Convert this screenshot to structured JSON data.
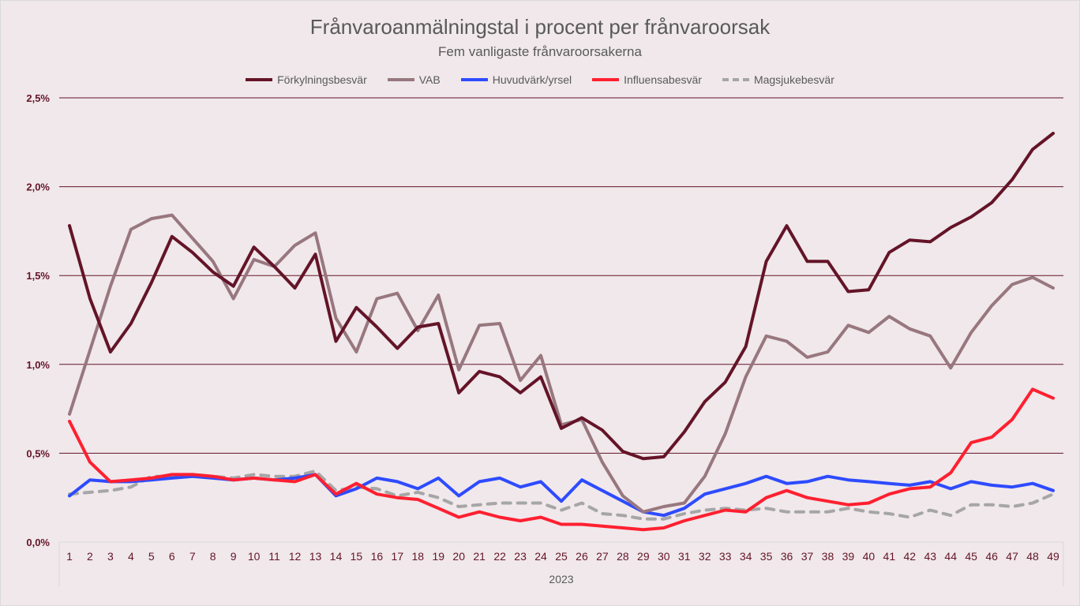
{
  "chart_data": {
    "type": "line",
    "title": "Frånvaroanmälningstal i procent per frånvaroorsak",
    "subtitle": "Fem vanligaste frånvaroorsakerna",
    "xlabel": "2023",
    "ylabel": "",
    "ylim": [
      0,
      2.5
    ],
    "yticks": [
      "0,0%",
      "0,5%",
      "1,0%",
      "1,5%",
      "2,0%",
      "2,5%"
    ],
    "grid": true,
    "legend_position": "top",
    "x": [
      1,
      2,
      3,
      4,
      5,
      6,
      7,
      8,
      9,
      10,
      11,
      12,
      13,
      14,
      15,
      16,
      17,
      18,
      19,
      20,
      21,
      22,
      23,
      24,
      25,
      26,
      27,
      28,
      29,
      30,
      31,
      32,
      33,
      34,
      35,
      36,
      37,
      38,
      39,
      40,
      41,
      42,
      43,
      44,
      45,
      46,
      47,
      48,
      49
    ],
    "series": [
      {
        "name": "Förkylningsbesvär",
        "color": "#641428",
        "dashed": false,
        "values": [
          1.78,
          1.37,
          1.07,
          1.23,
          1.46,
          1.72,
          1.63,
          1.52,
          1.44,
          1.66,
          1.55,
          1.43,
          1.62,
          1.13,
          1.32,
          1.21,
          1.09,
          1.21,
          1.23,
          0.84,
          0.96,
          0.93,
          0.84,
          0.93,
          0.64,
          0.7,
          0.63,
          0.51,
          0.47,
          0.48,
          0.62,
          0.79,
          0.9,
          1.1,
          1.58,
          1.78,
          1.58,
          1.58,
          1.41,
          1.42,
          1.63,
          1.7,
          1.69,
          1.77,
          1.83,
          1.91,
          2.04,
          2.21,
          2.3
        ]
      },
      {
        "name": "VAB",
        "color": "#98777f",
        "dashed": false,
        "values": [
          0.72,
          1.08,
          1.44,
          1.76,
          1.82,
          1.84,
          1.71,
          1.58,
          1.37,
          1.59,
          1.55,
          1.67,
          1.74,
          1.26,
          1.07,
          1.37,
          1.4,
          1.19,
          1.39,
          0.97,
          1.22,
          1.23,
          0.91,
          1.05,
          0.66,
          0.69,
          0.45,
          0.26,
          0.17,
          0.2,
          0.22,
          0.37,
          0.61,
          0.93,
          1.16,
          1.13,
          1.04,
          1.07,
          1.22,
          1.18,
          1.27,
          1.2,
          1.16,
          0.98,
          1.18,
          1.33,
          1.45,
          1.49,
          1.43
        ]
      },
      {
        "name": "Huvudvärk/yrsel",
        "color": "#2e4bff",
        "dashed": false,
        "values": [
          0.26,
          0.35,
          0.34,
          0.34,
          0.35,
          0.36,
          0.37,
          0.36,
          0.35,
          0.36,
          0.35,
          0.36,
          0.38,
          0.26,
          0.3,
          0.36,
          0.34,
          0.3,
          0.36,
          0.26,
          0.34,
          0.36,
          0.31,
          0.34,
          0.23,
          0.35,
          0.29,
          0.23,
          0.17,
          0.15,
          0.19,
          0.27,
          0.3,
          0.33,
          0.37,
          0.33,
          0.34,
          0.37,
          0.35,
          0.34,
          0.33,
          0.32,
          0.34,
          0.3,
          0.34,
          0.32,
          0.31,
          0.33,
          0.29
        ]
      },
      {
        "name": "Influensabesvär",
        "color": "#ff2030",
        "dashed": false,
        "values": [
          0.68,
          0.45,
          0.34,
          0.35,
          0.36,
          0.38,
          0.38,
          0.37,
          0.35,
          0.36,
          0.35,
          0.34,
          0.38,
          0.27,
          0.33,
          0.27,
          0.25,
          0.24,
          0.19,
          0.14,
          0.17,
          0.14,
          0.12,
          0.14,
          0.1,
          0.1,
          0.09,
          0.08,
          0.07,
          0.08,
          0.12,
          0.15,
          0.18,
          0.17,
          0.25,
          0.29,
          0.25,
          0.23,
          0.21,
          0.22,
          0.27,
          0.3,
          0.31,
          0.39,
          0.56,
          0.59,
          0.69,
          0.86,
          0.81
        ]
      },
      {
        "name": "Magsjukebesvär",
        "color": "#a6a6a6",
        "dashed": true,
        "values": [
          0.27,
          0.28,
          0.29,
          0.31,
          0.37,
          0.37,
          0.38,
          0.37,
          0.36,
          0.38,
          0.37,
          0.37,
          0.4,
          0.29,
          0.31,
          0.3,
          0.26,
          0.28,
          0.25,
          0.2,
          0.21,
          0.22,
          0.22,
          0.22,
          0.18,
          0.22,
          0.16,
          0.15,
          0.13,
          0.13,
          0.16,
          0.18,
          0.19,
          0.18,
          0.19,
          0.17,
          0.17,
          0.17,
          0.19,
          0.17,
          0.16,
          0.14,
          0.18,
          0.15,
          0.21,
          0.21,
          0.2,
          0.22,
          0.27
        ]
      }
    ]
  }
}
